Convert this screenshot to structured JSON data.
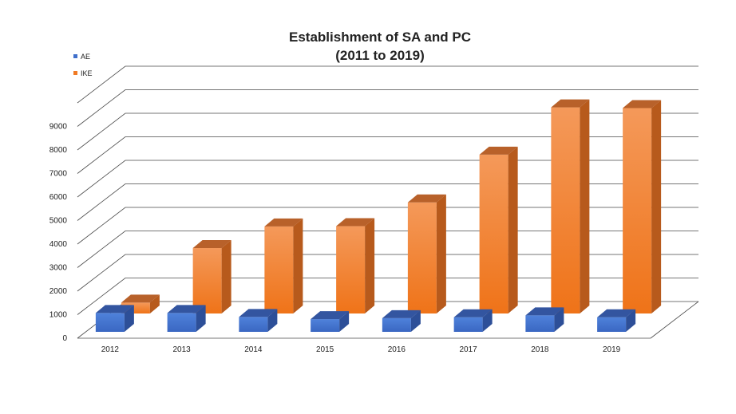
{
  "chart_data": {
    "type": "bar",
    "style": "3d-clustered",
    "title": [
      "Establishment of SA and PC",
      "(2011 to 2019)"
    ],
    "categories": [
      "2012",
      "2013",
      "2014",
      "2015",
      "2016",
      "2017",
      "2018",
      "2019"
    ],
    "series": [
      {
        "name": "AE",
        "color": "#3f6fcb",
        "values": [
          800,
          800,
          630,
          540,
          580,
          620,
          700,
          620
        ]
      },
      {
        "name": "IKE",
        "color": "#f07a24",
        "values": [
          460,
          2780,
          3700,
          3710,
          4720,
          6750,
          8760,
          8730
        ]
      }
    ],
    "y_ticks": [
      "0",
      "1000",
      "2000",
      "3000",
      "4000",
      "5000",
      "6000",
      "7000",
      "8000",
      "9000"
    ],
    "ylim": [
      0,
      10000
    ],
    "grid": true,
    "legend": "top-left"
  }
}
